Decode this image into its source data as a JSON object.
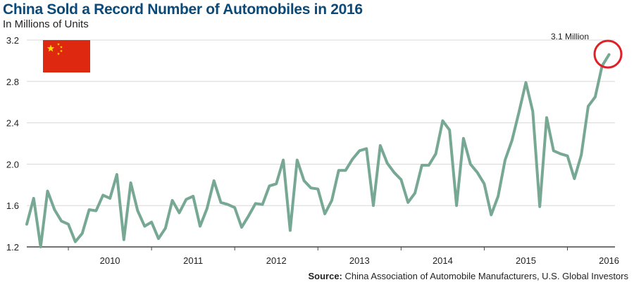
{
  "chart_data": {
    "type": "line",
    "title": "China Sold a Record Number of Automobiles in 2016",
    "subtitle": "In Millions of Units",
    "source_label": "Source:",
    "source_text": "China Association of Automobile Manufacturers, U.S. Global Investors",
    "annotation": "3.1 Million",
    "ylim": [
      1.2,
      3.2
    ],
    "yticks": [
      "1.2",
      "1.6",
      "2.0",
      "2.4",
      "2.8",
      "3.2"
    ],
    "year_labels": [
      "2010",
      "2011",
      "2012",
      "2013",
      "2014",
      "2015",
      "2016"
    ],
    "line_color": "#76a894",
    "highlight_color": "#e02026",
    "flag_colors": {
      "field": "#de2910",
      "star": "#ffde00"
    },
    "series": [
      {
        "x_start": "2009-07",
        "values": [
          1.42,
          1.67,
          1.2,
          1.74,
          1.56,
          1.45,
          1.42,
          1.25,
          1.33,
          1.56,
          1.55,
          1.7,
          1.67,
          1.9,
          1.27,
          1.82,
          1.55,
          1.4,
          1.44,
          1.28,
          1.38,
          1.65,
          1.53,
          1.66,
          1.69,
          1.4,
          1.57,
          1.84,
          1.63,
          1.61,
          1.58,
          1.39,
          1.5,
          1.62,
          1.61,
          1.79,
          1.81,
          2.04,
          1.36,
          2.04,
          1.84,
          1.77,
          1.76,
          1.52,
          1.65,
          1.94,
          1.94,
          2.05,
          2.13,
          2.15,
          1.6,
          2.18,
          2.01,
          1.92,
          1.85,
          1.63,
          1.72,
          1.99,
          1.99,
          2.1,
          2.42,
          2.33,
          1.6,
          2.25,
          2.0,
          1.92,
          1.81,
          1.51,
          1.69,
          2.04,
          2.23,
          2.5,
          2.79,
          2.51,
          1.59,
          2.45,
          2.13,
          2.1,
          2.08,
          1.86,
          2.09,
          2.56,
          2.65,
          2.95,
          3.06
        ]
      }
    ]
  }
}
